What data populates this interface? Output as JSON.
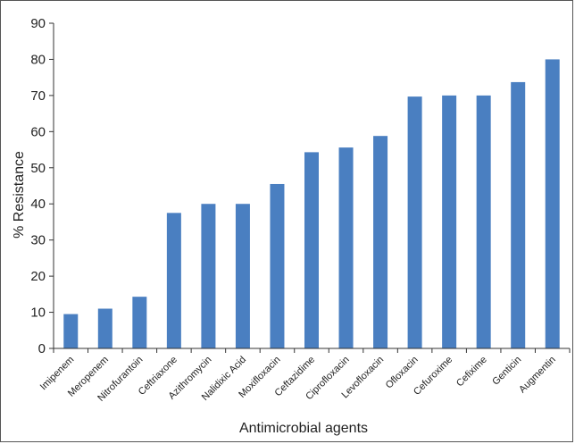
{
  "chart_data": {
    "type": "bar",
    "title": "",
    "xlabel": "Antimicrobial agents",
    "ylabel": "% Resistance",
    "ylim": [
      0,
      90
    ],
    "yticks": [
      0,
      10,
      20,
      30,
      40,
      50,
      60,
      70,
      80,
      90
    ],
    "grid": false,
    "legend": "none",
    "bar_color": "#4a7fc1",
    "categories": [
      "Imipenem",
      "Meropenem",
      "Nitrofurantoin",
      "Ceftriaxone",
      "Azithromycin",
      "Nalidixic Acid",
      "Moxifloxacin",
      "Ceftazidime",
      "Ciprofloxacin",
      "Levofloxacin",
      "Ofloxacin",
      "Cefuroxime",
      "Cefixime",
      "Genticin",
      "Augmentin"
    ],
    "values": [
      9.5,
      11,
      14.3,
      37.5,
      40,
      40,
      45.5,
      54.3,
      55.6,
      58.8,
      69.7,
      70,
      70,
      73.7,
      80
    ]
  }
}
